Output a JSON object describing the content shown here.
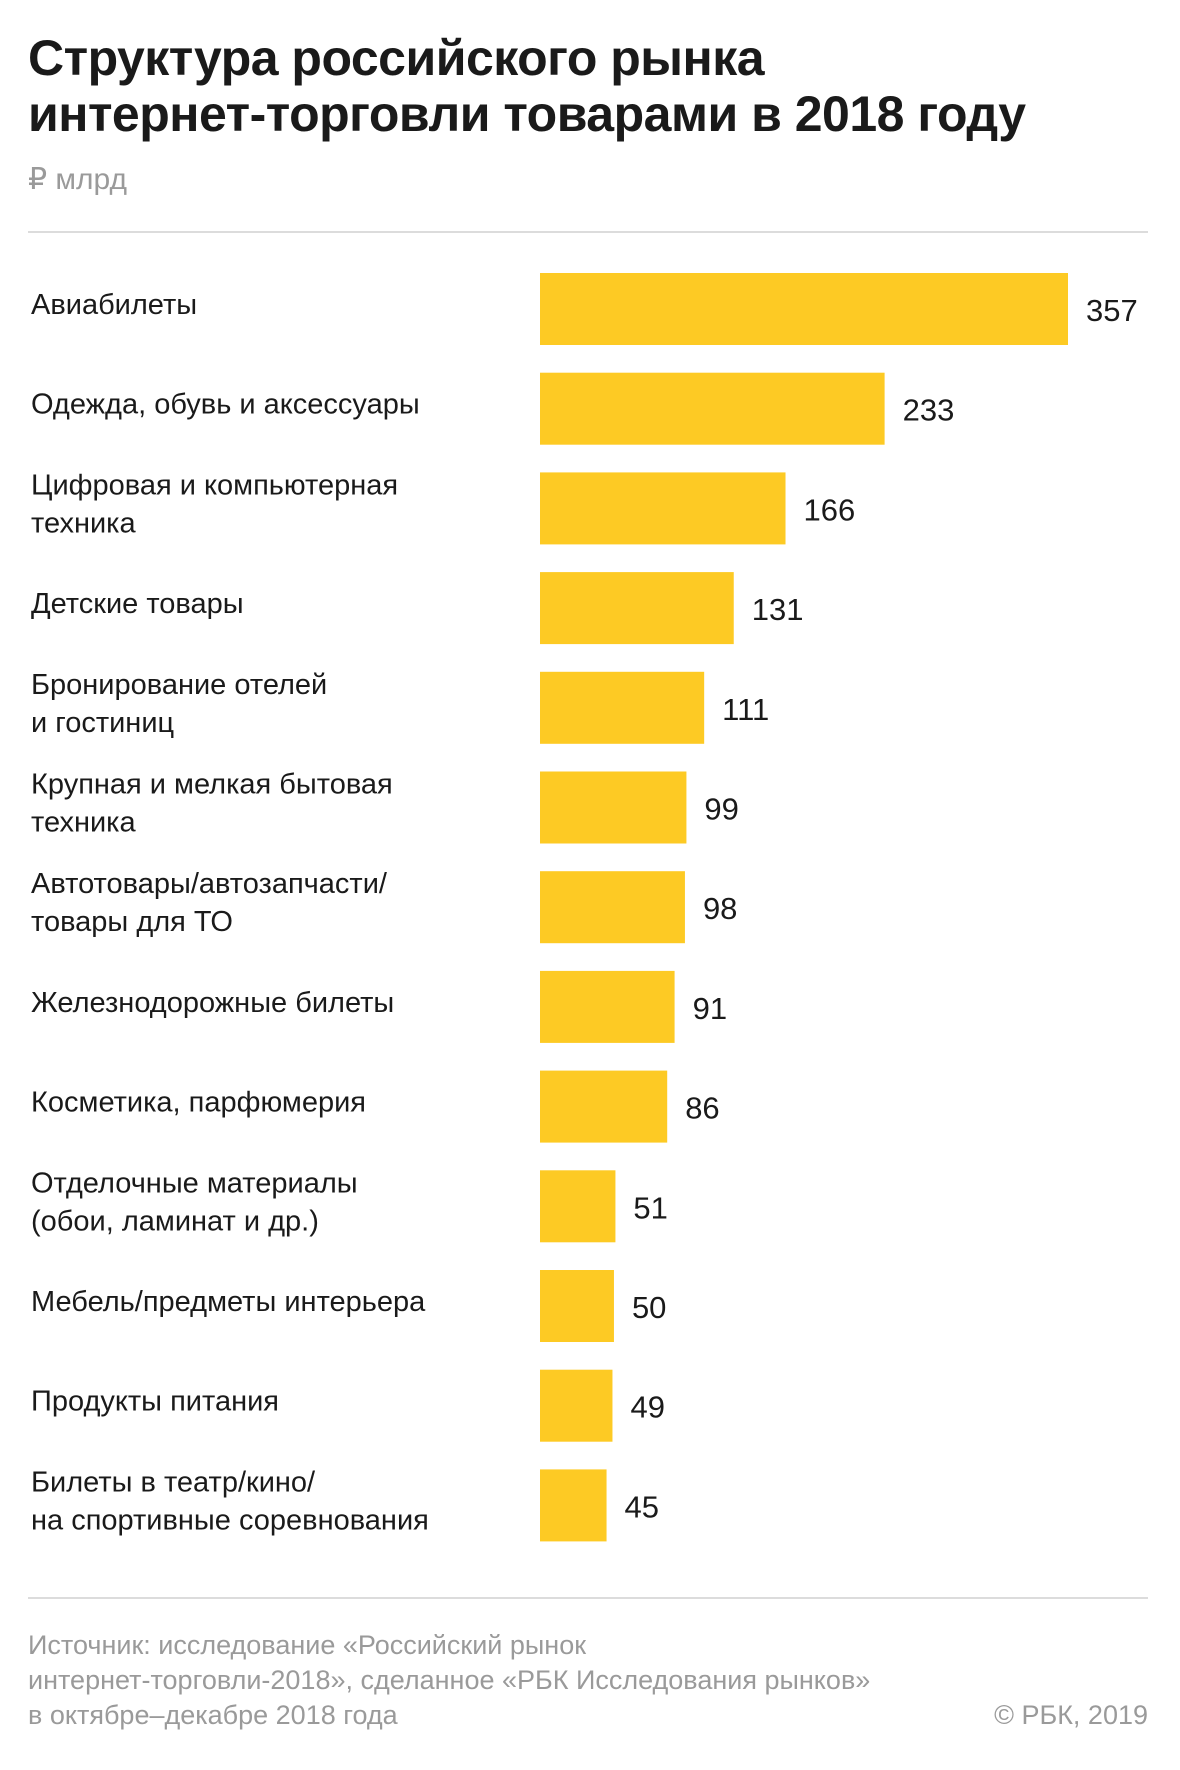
{
  "title_lines": [
    "Структура российского рынка",
    "интернет-торговли товарами в 2018 году"
  ],
  "unit": "₽ млрд",
  "colors": {
    "bar": "#fdca24",
    "text": "#1a1a1a",
    "muted": "#9a9a9a",
    "rule": "#dcdcdc"
  },
  "chart_data": {
    "type": "bar",
    "orientation": "horizontal",
    "categories": [
      [
        "Авиабилеты"
      ],
      [
        "Одежда, обувь и аксессуары"
      ],
      [
        "Цифровая и компьютерная",
        "техника"
      ],
      [
        "Детские товары"
      ],
      [
        "Бронирование отелей",
        "и гостиниц"
      ],
      [
        "Крупная и мелкая бытовая",
        "техника"
      ],
      [
        "Автотовары/автозапчасти/",
        "товары для ТО"
      ],
      [
        "Железнодорожные билеты"
      ],
      [
        "Косметика, парфюмерия"
      ],
      [
        "Отделочные материалы",
        "(обои, ламинат и др.)"
      ],
      [
        "Мебель/предметы интерьера"
      ],
      [
        "Продукты питания"
      ],
      [
        "Билеты в театр/кино/",
        "на спортивные соревнования"
      ]
    ],
    "values": [
      357,
      233,
      166,
      131,
      111,
      99,
      98,
      91,
      86,
      51,
      50,
      49,
      45
    ],
    "grid": false,
    "legend": "none"
  },
  "footer": {
    "source_lines": [
      "Источник: исследование «Российский рынок",
      "интернет-торговли-2018», сделанное «РБК Исследования рынков»",
      "в октябре–декабре 2018 года"
    ],
    "copyright": "© РБК, 2019"
  }
}
